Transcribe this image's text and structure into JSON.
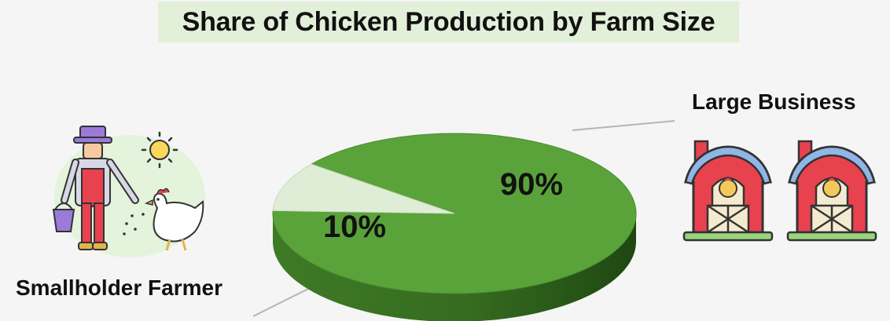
{
  "chart_data": {
    "type": "pie",
    "title": "Share of Chicken Production by Farm Size",
    "slices": [
      {
        "label": "Large Business",
        "value": 90,
        "display": "90%",
        "color": "#5aa33a"
      },
      {
        "label": "Smallholder Farmer",
        "value": 10,
        "display": "10%",
        "color": "#dfecd6"
      }
    ],
    "style": "3d-perspective",
    "legend": "none (callout labels)"
  },
  "illustrations": {
    "left": "farmer-feeding-chicken-icon",
    "right": "two-barns-with-chickens-icon"
  },
  "colors": {
    "background": "#f5f5f5",
    "title_band": "#e2efd9",
    "large_slice": "#5aa33a",
    "small_slice": "#dfecd6"
  }
}
